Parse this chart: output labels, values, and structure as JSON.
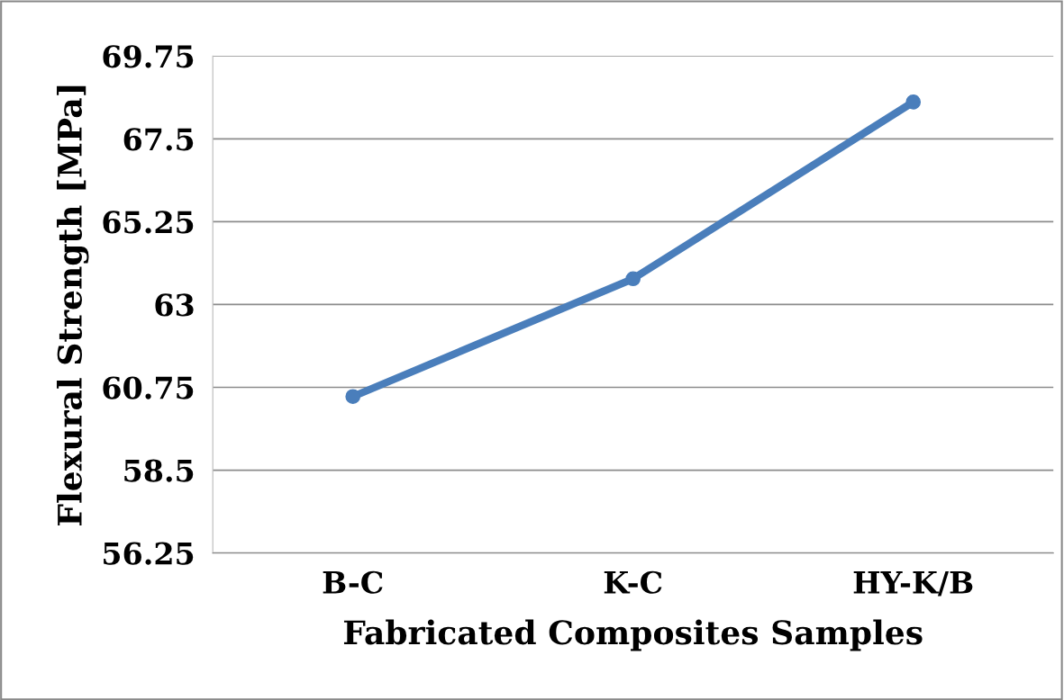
{
  "chart_data": {
    "type": "line",
    "xlabel": "Fabricated Composites Samples",
    "ylabel": "Flexural Strength [MPa]",
    "categories": [
      "B-C",
      "K-C",
      "HY-K/B"
    ],
    "series": [
      {
        "color": "#4a7ebb",
        "values": [
          60.5,
          63.7,
          68.5
        ]
      }
    ],
    "ylim": [
      56.25,
      69.75
    ],
    "yticks": [
      56.25,
      58.5,
      60.75,
      63,
      65.25,
      67.5,
      69.75
    ],
    "grid": "y",
    "marker": "circle",
    "line_style": "solid"
  }
}
